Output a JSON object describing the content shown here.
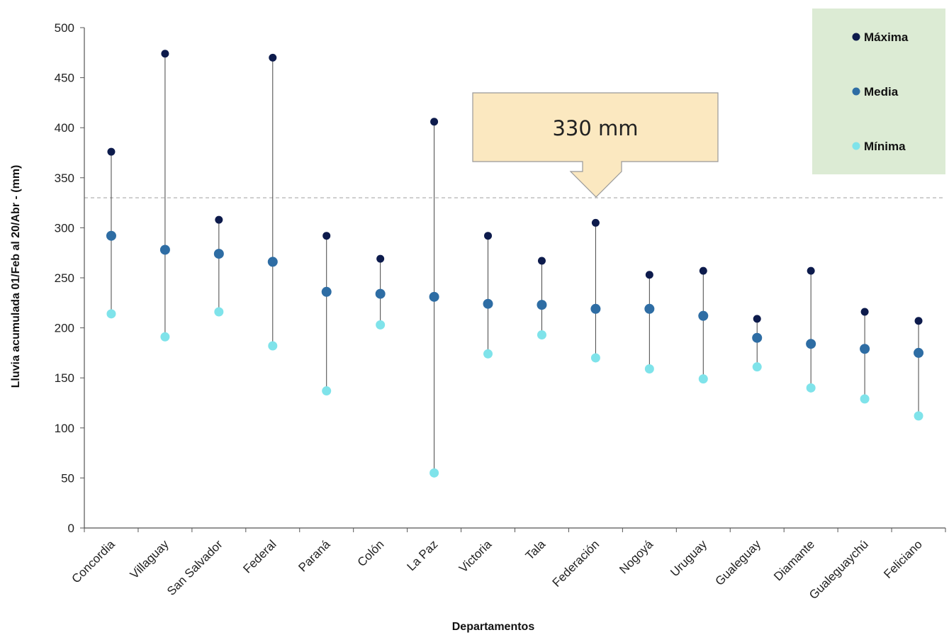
{
  "chart_data": {
    "type": "scatter",
    "title": "",
    "xlabel": "Departamentos",
    "ylabel": "Lluvia acumulada 01/Feb al 20/Abr - (mm)",
    "ylim": [
      0,
      500
    ],
    "yticks": [
      0,
      50,
      100,
      150,
      200,
      250,
      300,
      350,
      400,
      450,
      500
    ],
    "grid": false,
    "legend_position": "top-right",
    "categories": [
      "Concordia",
      "Villaguay",
      "San Salvador",
      "Federal",
      "Paraná",
      "Colón",
      "La Paz",
      "Victoria",
      "Tala",
      "Federación",
      "Nogoyá",
      "Uruguay",
      "Gualeguay",
      "Diamante",
      "Gualeguaychú",
      "Feliciano"
    ],
    "series": [
      {
        "name": "Máxima",
        "color": "#0d1b4c",
        "values": [
          376,
          474,
          308,
          470,
          292,
          269,
          406,
          292,
          267,
          305,
          253,
          257,
          209,
          257,
          216,
          207
        ]
      },
      {
        "name": "Media",
        "color": "#2e6da4",
        "values": [
          292,
          278,
          274,
          266,
          236,
          234,
          231,
          224,
          223,
          219,
          219,
          212,
          190,
          184,
          179,
          175
        ]
      },
      {
        "name": "Mínima",
        "color": "#7fe3ea",
        "values": [
          214,
          191,
          216,
          182,
          137,
          203,
          55,
          174,
          193,
          170,
          159,
          149,
          161,
          140,
          129,
          112
        ]
      }
    ],
    "reference_line": {
      "value": 330,
      "style": "dashed",
      "color": "#aaaaaa"
    },
    "annotation": {
      "text": "330 mm",
      "fill": "#fbe8c0",
      "stroke": "#999999"
    },
    "legend_background": "#dcebd4"
  }
}
